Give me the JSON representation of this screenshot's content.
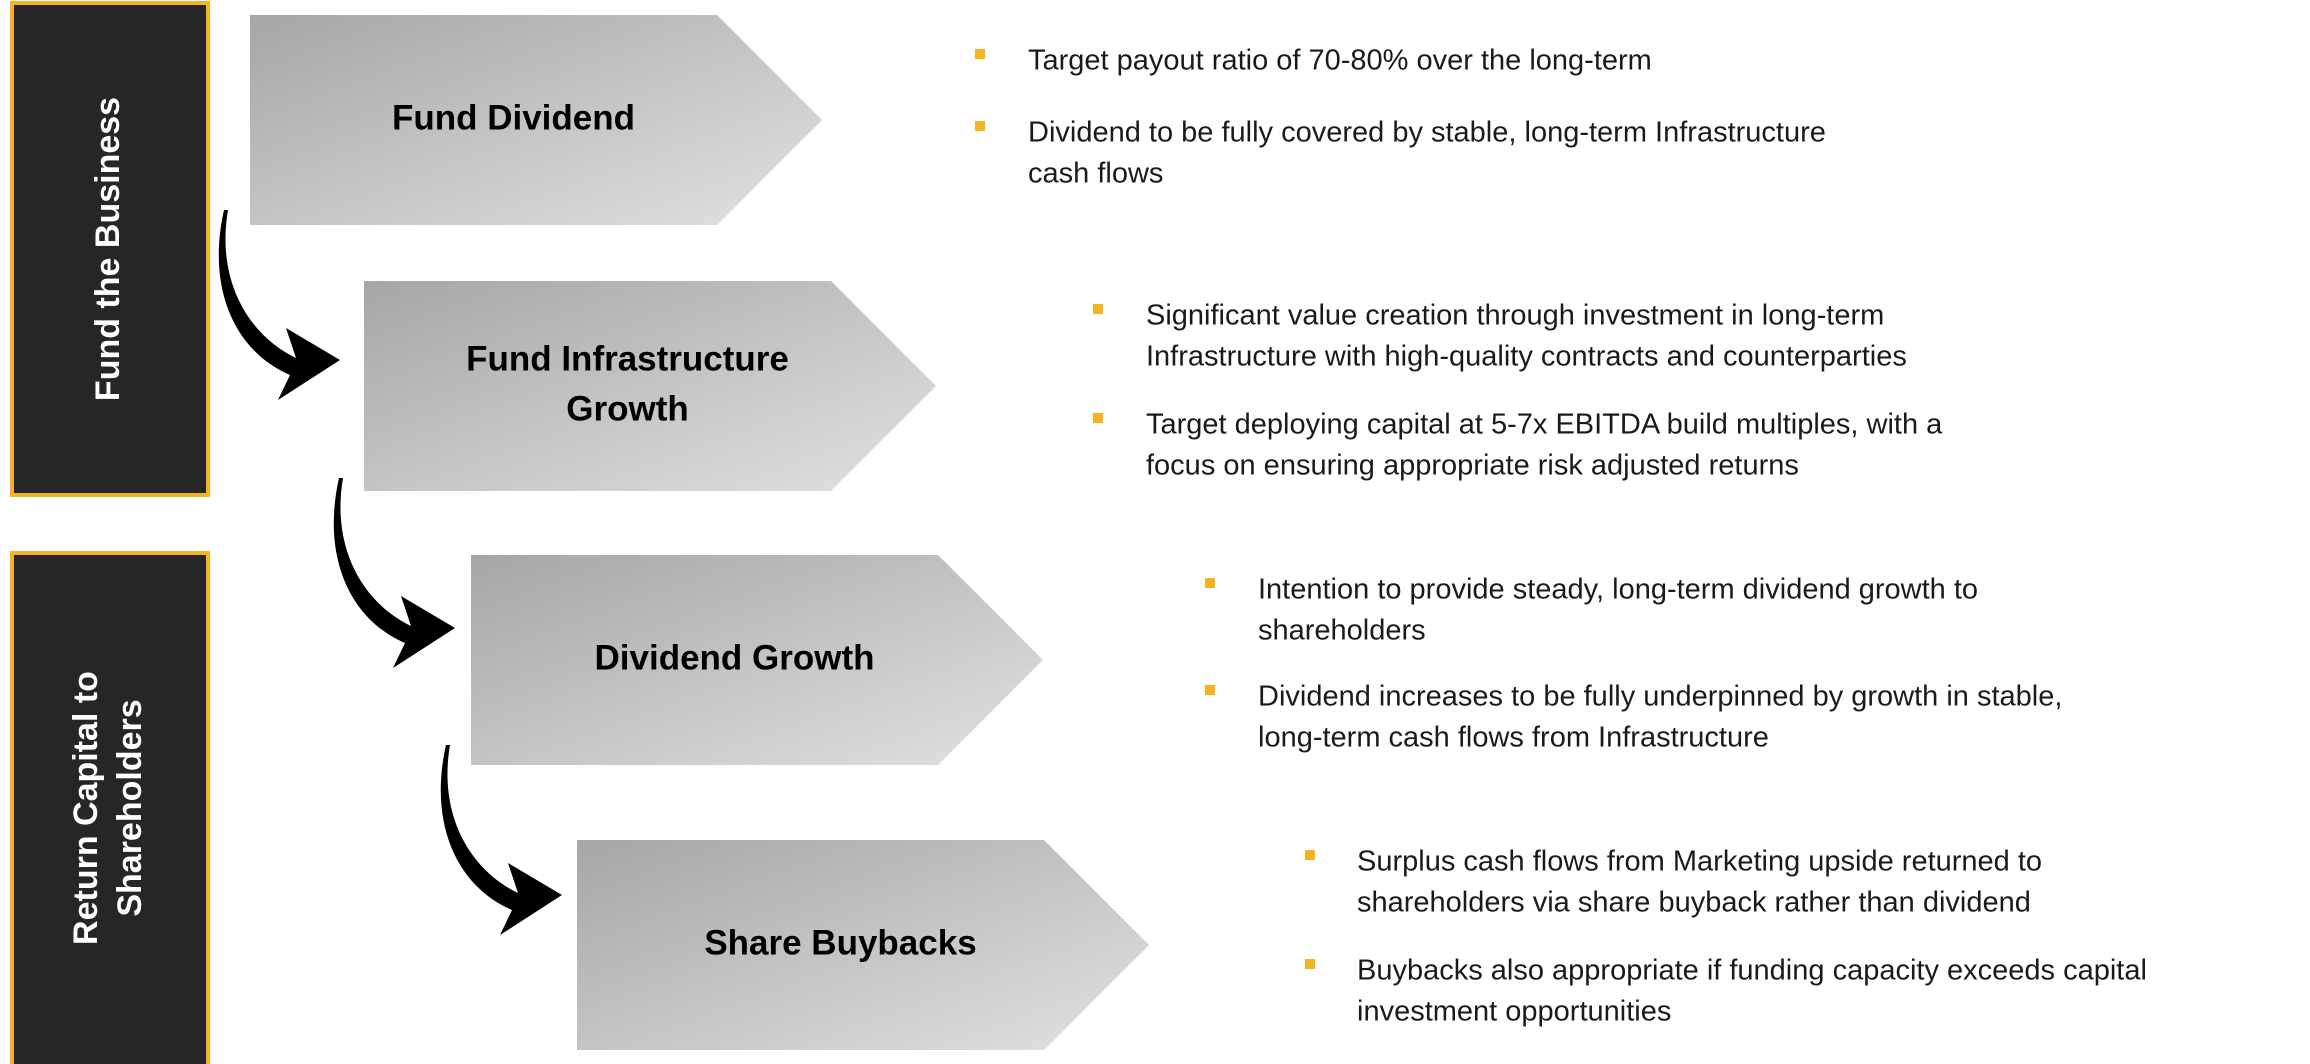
{
  "sidebar": [
    {
      "lines": [
        "Fund the Business"
      ]
    },
    {
      "lines": [
        "Return Capital to",
        "Shareholders"
      ]
    }
  ],
  "steps": [
    {
      "label_lines": [
        "Fund Dividend"
      ],
      "bullets": [
        [
          "Target payout ratio of 70-80% over the long-term"
        ],
        [
          "Dividend to be fully covered by stable, long-term Infrastructure",
          "cash flows"
        ]
      ]
    },
    {
      "label_lines": [
        "Fund Infrastructure",
        "Growth"
      ],
      "bullets": [
        [
          "Significant value creation through investment in long-term",
          "Infrastructure with high-quality contracts and counterparties"
        ],
        [
          "Target deploying capital at 5-7x EBITDA build multiples, with a",
          "focus on ensuring appropriate risk adjusted returns"
        ]
      ]
    },
    {
      "label_lines": [
        "Dividend Growth"
      ],
      "bullets": [
        [
          "Intention to provide steady, long-term dividend growth to",
          "shareholders"
        ],
        [
          "Dividend increases to be fully underpinned by growth in stable,",
          "long-term cash flows from Infrastructure"
        ]
      ]
    },
    {
      "label_lines": [
        "Share Buybacks"
      ],
      "bullets": [
        [
          "Surplus cash flows from Marketing upside returned to",
          "shareholders via share buyback rather than dividend"
        ],
        [
          "Buybacks also appropriate if funding capacity exceeds capital",
          "investment opportunities"
        ]
      ]
    }
  ]
}
